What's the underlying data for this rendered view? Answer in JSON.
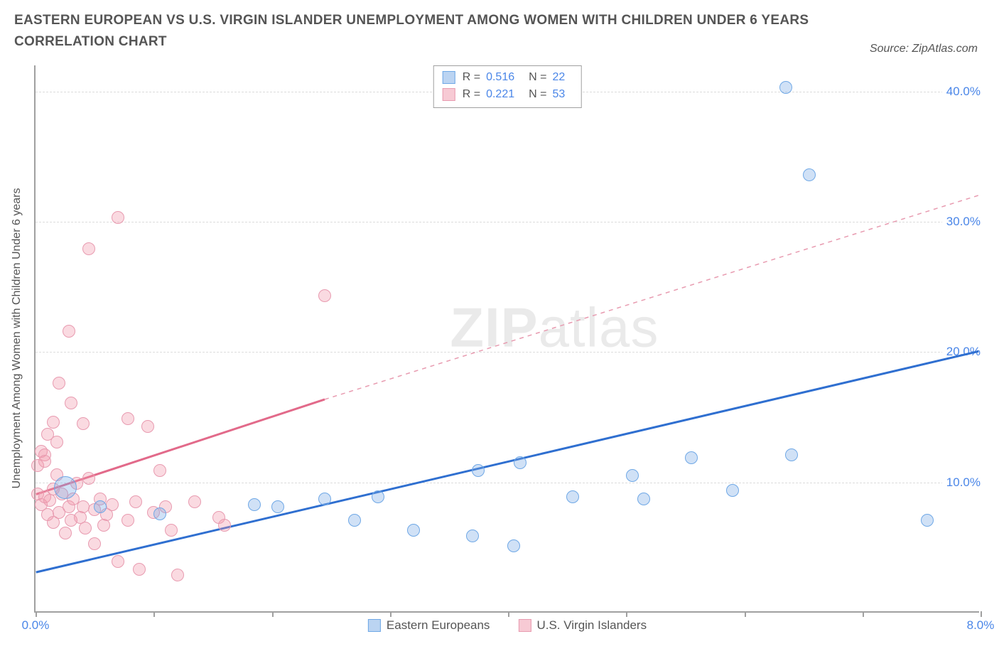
{
  "title": "EASTERN EUROPEAN VS U.S. VIRGIN ISLANDER UNEMPLOYMENT AMONG WOMEN WITH CHILDREN UNDER 6 YEARS CORRELATION CHART",
  "source_label": "Source: ZipAtlas.com",
  "y_axis_title": "Unemployment Among Women with Children Under 6 years",
  "watermark_bold": "ZIP",
  "watermark_light": "atlas",
  "colors": {
    "series_a_fill": "rgba(120,170,230,0.35)",
    "series_a_stroke": "#6fa8e6",
    "series_b_fill": "rgba(240,150,170,0.35)",
    "series_b_stroke": "#e89bb0",
    "line_a": "#2f6fd0",
    "line_b": "#e26a8a",
    "axis_label": "#4a86e8",
    "grid": "#dcdcdc",
    "text": "#555555",
    "background": "#ffffff"
  },
  "chart": {
    "type": "scatter",
    "xlim": [
      0,
      8
    ],
    "ylim": [
      0,
      42
    ],
    "x_ticks": [
      0,
      1,
      2,
      3,
      4,
      5,
      6,
      7,
      8
    ],
    "x_tick_labels": {
      "0": "0.0%",
      "8": "8.0%"
    },
    "y_gridlines": [
      10,
      20,
      30,
      40
    ],
    "y_tick_labels": {
      "10": "10.0%",
      "20": "20.0%",
      "30": "30.0%",
      "40": "40.0%"
    },
    "marker_radius": 9,
    "marker_radius_large": 16,
    "line_width_solid": 3,
    "line_width_dash": 1.5,
    "dash_pattern": "6,6"
  },
  "stats": [
    {
      "swatch_fill": "rgba(120,170,230,0.5)",
      "swatch_stroke": "#6fa8e6",
      "R": "0.516",
      "N": "22"
    },
    {
      "swatch_fill": "rgba(240,150,170,0.5)",
      "swatch_stroke": "#e89bb0",
      "R": "0.221",
      "N": "53"
    }
  ],
  "stats_labels": {
    "R": "R =",
    "N": "N ="
  },
  "x_legend": [
    {
      "label": "Eastern Europeans",
      "fill": "rgba(120,170,230,0.5)",
      "stroke": "#6fa8e6"
    },
    {
      "label": "U.S. Virgin Islanders",
      "fill": "rgba(240,150,170,0.5)",
      "stroke": "#e89bb0"
    }
  ],
  "trend_lines": {
    "a_solid": {
      "x1": 0.0,
      "y1": 3.0,
      "x2": 8.0,
      "y2": 20.0,
      "color": "#2f6fd0"
    },
    "b_solid": {
      "x1": 0.0,
      "y1": 9.0,
      "x2": 2.45,
      "y2": 16.3,
      "color": "#e26a8a"
    },
    "b_dash": {
      "x1": 2.45,
      "y1": 16.3,
      "x2": 8.0,
      "y2": 32.0,
      "color": "#e89bb0"
    }
  },
  "series_a": [
    {
      "x": 0.25,
      "y": 9.5,
      "r": 16
    },
    {
      "x": 0.55,
      "y": 8.0
    },
    {
      "x": 1.05,
      "y": 7.5
    },
    {
      "x": 1.85,
      "y": 8.2
    },
    {
      "x": 2.05,
      "y": 8.0
    },
    {
      "x": 2.45,
      "y": 8.6
    },
    {
      "x": 2.7,
      "y": 7.0
    },
    {
      "x": 2.9,
      "y": 8.8
    },
    {
      "x": 3.2,
      "y": 6.2
    },
    {
      "x": 3.75,
      "y": 10.8
    },
    {
      "x": 3.7,
      "y": 5.8
    },
    {
      "x": 4.1,
      "y": 11.4
    },
    {
      "x": 4.05,
      "y": 5.0
    },
    {
      "x": 4.55,
      "y": 8.8
    },
    {
      "x": 5.05,
      "y": 10.4
    },
    {
      "x": 5.15,
      "y": 8.6
    },
    {
      "x": 5.55,
      "y": 11.8
    },
    {
      "x": 5.9,
      "y": 9.3
    },
    {
      "x": 6.4,
      "y": 12.0
    },
    {
      "x": 6.55,
      "y": 33.5
    },
    {
      "x": 6.35,
      "y": 40.2
    },
    {
      "x": 7.55,
      "y": 7.0
    }
  ],
  "series_b": [
    {
      "x": 0.02,
      "y": 9.0
    },
    {
      "x": 0.02,
      "y": 11.2
    },
    {
      "x": 0.05,
      "y": 12.3
    },
    {
      "x": 0.05,
      "y": 8.2
    },
    {
      "x": 0.08,
      "y": 8.8
    },
    {
      "x": 0.08,
      "y": 12.0
    },
    {
      "x": 0.08,
      "y": 11.5
    },
    {
      "x": 0.1,
      "y": 7.4
    },
    {
      "x": 0.1,
      "y": 13.6
    },
    {
      "x": 0.12,
      "y": 8.5
    },
    {
      "x": 0.15,
      "y": 14.5
    },
    {
      "x": 0.15,
      "y": 9.4
    },
    {
      "x": 0.15,
      "y": 6.8
    },
    {
      "x": 0.18,
      "y": 13.0
    },
    {
      "x": 0.18,
      "y": 10.5
    },
    {
      "x": 0.2,
      "y": 7.6
    },
    {
      "x": 0.2,
      "y": 17.5
    },
    {
      "x": 0.22,
      "y": 9.0
    },
    {
      "x": 0.25,
      "y": 6.0
    },
    {
      "x": 0.28,
      "y": 8.0
    },
    {
      "x": 0.28,
      "y": 21.5
    },
    {
      "x": 0.3,
      "y": 16.0
    },
    {
      "x": 0.3,
      "y": 7.0
    },
    {
      "x": 0.32,
      "y": 8.6
    },
    {
      "x": 0.35,
      "y": 9.8
    },
    {
      "x": 0.38,
      "y": 7.2
    },
    {
      "x": 0.4,
      "y": 14.4
    },
    {
      "x": 0.4,
      "y": 8.0
    },
    {
      "x": 0.42,
      "y": 6.4
    },
    {
      "x": 0.45,
      "y": 27.8
    },
    {
      "x": 0.45,
      "y": 10.2
    },
    {
      "x": 0.5,
      "y": 7.8
    },
    {
      "x": 0.5,
      "y": 5.2
    },
    {
      "x": 0.55,
      "y": 8.6
    },
    {
      "x": 0.58,
      "y": 6.6
    },
    {
      "x": 0.6,
      "y": 7.4
    },
    {
      "x": 0.65,
      "y": 8.2
    },
    {
      "x": 0.7,
      "y": 30.2
    },
    {
      "x": 0.7,
      "y": 3.8
    },
    {
      "x": 0.78,
      "y": 14.8
    },
    {
      "x": 0.78,
      "y": 7.0
    },
    {
      "x": 0.85,
      "y": 8.4
    },
    {
      "x": 0.88,
      "y": 3.2
    },
    {
      "x": 0.95,
      "y": 14.2
    },
    {
      "x": 1.0,
      "y": 7.6
    },
    {
      "x": 1.05,
      "y": 10.8
    },
    {
      "x": 1.1,
      "y": 8.0
    },
    {
      "x": 1.15,
      "y": 6.2
    },
    {
      "x": 1.2,
      "y": 2.8
    },
    {
      "x": 1.35,
      "y": 8.4
    },
    {
      "x": 1.55,
      "y": 7.2
    },
    {
      "x": 1.6,
      "y": 6.6
    },
    {
      "x": 2.45,
      "y": 24.2
    }
  ]
}
